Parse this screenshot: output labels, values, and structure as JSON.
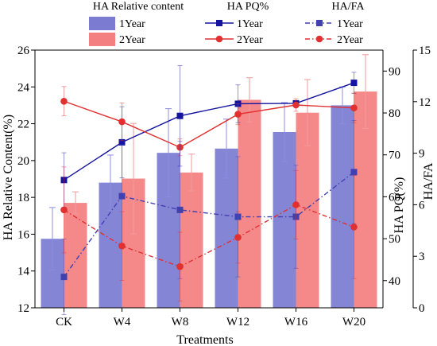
{
  "chart_data": {
    "type": "bar",
    "categories": [
      "CK",
      "W4",
      "W8",
      "W12",
      "W16",
      "W20"
    ],
    "xlabel": "Treatments",
    "axes": {
      "left": {
        "label": "HA Relative Content(%)",
        "range": [
          12,
          26
        ],
        "ticks": [
          12,
          14,
          16,
          18,
          20,
          22,
          24,
          26
        ]
      },
      "right1": {
        "label": "HA PQ(%)",
        "range": [
          33.5,
          95
        ],
        "ticks": [
          40,
          50,
          60,
          70,
          80,
          90
        ]
      },
      "right2": {
        "label": "HA/FA",
        "range": [
          0,
          15
        ],
        "ticks": [
          0,
          3,
          6,
          9,
          12,
          15
        ]
      }
    },
    "legend": {
      "group_titles": [
        "HA Relative content",
        "HA PQ%",
        "HA/FA"
      ]
    },
    "series": [
      {
        "name": "1Year",
        "group": "HA Relative content",
        "kind": "bar",
        "axis": "left",
        "color": "#7b7bd2",
        "values": [
          15.75,
          18.8,
          20.42,
          20.65,
          21.55,
          23.0
        ],
        "errors": [
          1.7,
          1.5,
          2.4,
          1.6,
          1.6,
          1.0
        ]
      },
      {
        "name": "2Year",
        "group": "HA Relative content",
        "kind": "bar",
        "axis": "left",
        "color": "#f47f80",
        "values": [
          17.7,
          19.02,
          19.35,
          23.3,
          22.6,
          23.75
        ],
        "errors": [
          0.6,
          3.0,
          1.0,
          1.2,
          1.8,
          2.0
        ]
      },
      {
        "name": "1Year",
        "group": "HA PQ%",
        "kind": "line",
        "axis": "right1",
        "color": "#1414a0",
        "marker": "square",
        "dash": false,
        "values": [
          64.0,
          73.0,
          79.3,
          82.2,
          82.3,
          87.2
        ],
        "errors": [
          6.5,
          8.5,
          12.0,
          4.5,
          0,
          2.5
        ]
      },
      {
        "name": "2Year",
        "group": "HA PQ%",
        "kind": "line",
        "axis": "right1",
        "color": "#e03030",
        "marker": "circle",
        "dash": false,
        "values": [
          82.8,
          77.9,
          71.8,
          79.7,
          81.9,
          81.2
        ],
        "errors": [
          3.5,
          4.5,
          2.0,
          2.5,
          1.5,
          3.5
        ]
      },
      {
        "name": "1Year",
        "group": "HA/FA",
        "kind": "line",
        "axis": "right2",
        "color": "#4040b0",
        "marker": "square",
        "dash": true,
        "values": [
          1.8,
          6.5,
          5.7,
          5.3,
          5.3,
          7.9
        ],
        "errors": [
          2.2,
          3.0,
          4.0,
          3.5,
          3.0,
          3.0
        ]
      },
      {
        "name": "2Year",
        "group": "HA/FA",
        "kind": "line",
        "axis": "right2",
        "color": "#e03030",
        "marker": "circle",
        "dash": true,
        "values": [
          5.7,
          3.6,
          2.4,
          4.1,
          6.0,
          4.7
        ],
        "errors": [
          2.5,
          2.0,
          2.0,
          1.5,
          2.0,
          3.0
        ]
      }
    ]
  }
}
